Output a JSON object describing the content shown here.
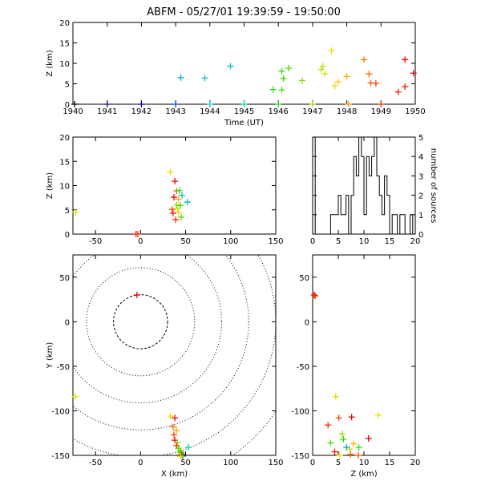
{
  "title": "ABFM - 05/27/01 19:39:59 - 19:50:00",
  "chart_data": [
    {
      "id": "time-height",
      "type": "scatter",
      "xlabel": "Time (UT)",
      "ylabel": "Z (km)",
      "xlim": [
        1940,
        1950
      ],
      "ylim": [
        0,
        20
      ],
      "xticks": [
        "1940",
        "1941",
        "1942",
        "1943",
        "1944",
        "1945",
        "1946",
        "1947",
        "1948",
        "1949",
        "1950"
      ],
      "yticks": [
        "0",
        "5",
        "10",
        "15",
        "20"
      ],
      "points": [
        {
          "x": 1940.05,
          "y": 0,
          "color": "#000000"
        },
        {
          "x": 1941.0,
          "y": 0,
          "color": "#3a007a"
        },
        {
          "x": 1942.0,
          "y": 0,
          "color": "#0000dd"
        },
        {
          "x": 1943.0,
          "y": 0,
          "color": "#0044dd"
        },
        {
          "x": 1943.15,
          "y": 6.5,
          "color": "#00aacc"
        },
        {
          "x": 1943.85,
          "y": 6.4,
          "color": "#00bbcc"
        },
        {
          "x": 1944.0,
          "y": 0,
          "color": "#00dddd"
        },
        {
          "x": 1944.6,
          "y": 9.3,
          "color": "#00ccbb"
        },
        {
          "x": 1945.0,
          "y": 0,
          "color": "#00ddaa"
        },
        {
          "x": 1945.85,
          "y": 3.6,
          "color": "#22dd22"
        },
        {
          "x": 1946.0,
          "y": 0,
          "color": "#22dd22"
        },
        {
          "x": 1946.1,
          "y": 8.1,
          "color": "#33dd00"
        },
        {
          "x": 1946.15,
          "y": 6.3,
          "color": "#33dd00"
        },
        {
          "x": 1946.1,
          "y": 3.5,
          "color": "#44dd00"
        },
        {
          "x": 1946.3,
          "y": 8.8,
          "color": "#55dd00"
        },
        {
          "x": 1946.7,
          "y": 5.8,
          "color": "#88dd00"
        },
        {
          "x": 1947.0,
          "y": 0,
          "color": "#aadd00"
        },
        {
          "x": 1947.25,
          "y": 8.5,
          "color": "#bbdd00"
        },
        {
          "x": 1947.3,
          "y": 9.3,
          "color": "#ccdd00"
        },
        {
          "x": 1947.35,
          "y": 7.4,
          "color": "#dddd00"
        },
        {
          "x": 1947.55,
          "y": 13.1,
          "color": "#eedd00"
        },
        {
          "x": 1947.65,
          "y": 4.5,
          "color": "#eedd00"
        },
        {
          "x": 1947.75,
          "y": 5.5,
          "color": "#ffcc00"
        },
        {
          "x": 1948.0,
          "y": 6.8,
          "color": "#ffaa00"
        },
        {
          "x": 1948.05,
          "y": 0,
          "color": "#ff9900"
        },
        {
          "x": 1948.5,
          "y": 10.9,
          "color": "#ff7700"
        },
        {
          "x": 1948.65,
          "y": 7.4,
          "color": "#ff6600"
        },
        {
          "x": 1948.7,
          "y": 5.2,
          "color": "#ff5500"
        },
        {
          "x": 1948.85,
          "y": 5.1,
          "color": "#ff4400"
        },
        {
          "x": 1949.0,
          "y": 0,
          "color": "#ff3300"
        },
        {
          "x": 1949.5,
          "y": 3.0,
          "color": "#ff2200"
        },
        {
          "x": 1949.7,
          "y": 4.3,
          "color": "#ff1100"
        },
        {
          "x": 1949.7,
          "y": 10.9,
          "color": "#ee0000"
        },
        {
          "x": 1949.95,
          "y": 7.6,
          "color": "#ee0000"
        }
      ]
    },
    {
      "id": "x-height",
      "type": "scatter",
      "xlabel": "",
      "ylabel": "Z (km)",
      "xlim": [
        -75,
        150
      ],
      "ylim": [
        0,
        20
      ],
      "xticks": [
        -50,
        0,
        50,
        100,
        150
      ],
      "yticks": [
        "0",
        "5",
        "10",
        "15",
        "20"
      ],
      "points": [
        {
          "x": -72,
          "y": 4.5,
          "color": "#eedd00"
        },
        {
          "x": -5,
          "y": 0,
          "color": "#ee0000"
        },
        {
          "x": -3,
          "y": 0,
          "color": "#ff3300"
        },
        {
          "x": 33,
          "y": 12.8,
          "color": "#eedd00"
        },
        {
          "x": 38,
          "y": 10.9,
          "color": "#ee0000"
        },
        {
          "x": 40,
          "y": 8.9,
          "color": "#ff6600"
        },
        {
          "x": 37,
          "y": 7.6,
          "color": "#ee0000"
        },
        {
          "x": 42,
          "y": 7.2,
          "color": "#ffaa00"
        },
        {
          "x": 40,
          "y": 6.0,
          "color": "#88dd00"
        },
        {
          "x": 43,
          "y": 9.0,
          "color": "#22dd22"
        },
        {
          "x": 35,
          "y": 5.1,
          "color": "#ff4400"
        },
        {
          "x": 41,
          "y": 5.3,
          "color": "#ccdd00"
        },
        {
          "x": 39,
          "y": 3.0,
          "color": "#ff2200"
        },
        {
          "x": 36,
          "y": 4.3,
          "color": "#ff1100"
        },
        {
          "x": 45,
          "y": 3.5,
          "color": "#44dd00"
        },
        {
          "x": 44,
          "y": 5.9,
          "color": "#33dd00"
        },
        {
          "x": 46,
          "y": 8.0,
          "color": "#00ccbb"
        },
        {
          "x": 52,
          "y": 6.6,
          "color": "#00aacc"
        },
        {
          "x": 42,
          "y": 4.5,
          "color": "#eedd00"
        }
      ]
    },
    {
      "id": "height-histogram",
      "type": "bar",
      "ylabel": "number of sources",
      "xlim": [
        0,
        20
      ],
      "ylim": [
        0,
        5
      ],
      "xticks": [
        0,
        5,
        10,
        15,
        20
      ],
      "yticks": [
        0,
        1,
        2,
        3,
        4,
        5
      ],
      "bin_width": 0.5,
      "counts": [
        5,
        0,
        0,
        0,
        0,
        0,
        0,
        1,
        1,
        1,
        2,
        1,
        1,
        2,
        0,
        2,
        4,
        3,
        5,
        4,
        1,
        4,
        3,
        4,
        5,
        3,
        2,
        1,
        3,
        2,
        0,
        1,
        1,
        0,
        1,
        1,
        0,
        0,
        1,
        0
      ]
    },
    {
      "id": "plan-view",
      "type": "scatter",
      "xlabel": "X (km)",
      "ylabel": "Y (km)",
      "xlim": [
        -75,
        150
      ],
      "ylim": [
        -150,
        75
      ],
      "xticks": [
        -50,
        0,
        50,
        100,
        150
      ],
      "yticks": [
        -150,
        -100,
        -50,
        0,
        50
      ],
      "range_rings_km": [
        30,
        60,
        90,
        120,
        150,
        180
      ],
      "points": [
        {
          "x": -4,
          "y": 30,
          "color": "#ee0000"
        },
        {
          "x": -72,
          "y": -84,
          "color": "#eedd00"
        },
        {
          "x": 33,
          "y": -106,
          "color": "#eedd00"
        },
        {
          "x": 38,
          "y": -108,
          "color": "#ee0000"
        },
        {
          "x": 36,
          "y": -118,
          "color": "#ff6600"
        },
        {
          "x": 40,
          "y": -122,
          "color": "#ffaa00"
        },
        {
          "x": 37,
          "y": -127,
          "color": "#ff4400"
        },
        {
          "x": 38,
          "y": -133,
          "color": "#ee0000"
        },
        {
          "x": 41,
          "y": -136,
          "color": "#88dd00"
        },
        {
          "x": 40,
          "y": -139,
          "color": "#ff2200"
        },
        {
          "x": 42,
          "y": -142,
          "color": "#22dd22"
        },
        {
          "x": 43,
          "y": -144,
          "color": "#ccdd00"
        },
        {
          "x": 44,
          "y": -146,
          "color": "#44dd00"
        },
        {
          "x": 45,
          "y": -147,
          "color": "#33dd00"
        },
        {
          "x": 46,
          "y": -149,
          "color": "#ff1100"
        },
        {
          "x": 53,
          "y": -141,
          "color": "#00ccbb"
        },
        {
          "x": 47,
          "y": -151,
          "color": "#00aacc"
        },
        {
          "x": 44,
          "y": -151,
          "color": "#eedd00"
        }
      ]
    },
    {
      "id": "height-y",
      "type": "scatter",
      "xlabel": "Z (km)",
      "ylabel": "",
      "xlim": [
        0,
        20
      ],
      "ylim": [
        -150,
        75
      ],
      "xticks": [
        0,
        5,
        10,
        15,
        20
      ],
      "yticks": [
        -150,
        -100,
        -50,
        0,
        50
      ],
      "points": [
        {
          "x": 0.3,
          "y": 30,
          "color": "#ee0000"
        },
        {
          "x": 0.5,
          "y": 29,
          "color": "#ff3300"
        },
        {
          "x": 4.5,
          "y": -84,
          "color": "#eedd00"
        },
        {
          "x": 3.0,
          "y": -116,
          "color": "#ff2200"
        },
        {
          "x": 5.1,
          "y": -108,
          "color": "#ff4400"
        },
        {
          "x": 7.6,
          "y": -107,
          "color": "#ee0000"
        },
        {
          "x": 12.8,
          "y": -105,
          "color": "#eedd00"
        },
        {
          "x": 10.9,
          "y": -131,
          "color": "#ee0000"
        },
        {
          "x": 3.5,
          "y": -136,
          "color": "#44dd00"
        },
        {
          "x": 5.8,
          "y": -126,
          "color": "#88dd00"
        },
        {
          "x": 6.0,
          "y": -132,
          "color": "#33dd00"
        },
        {
          "x": 8.0,
          "y": -137,
          "color": "#ffaa00"
        },
        {
          "x": 7.2,
          "y": -143,
          "color": "#ccdd00"
        },
        {
          "x": 6.6,
          "y": -141,
          "color": "#00aacc"
        },
        {
          "x": 9.0,
          "y": -141,
          "color": "#22dd22"
        },
        {
          "x": 4.3,
          "y": -146,
          "color": "#ff1100"
        },
        {
          "x": 7.4,
          "y": -149,
          "color": "#ff6600"
        },
        {
          "x": 8.9,
          "y": -150,
          "color": "#ff5500"
        },
        {
          "x": 5.3,
          "y": -150,
          "color": "#eedd00"
        }
      ]
    }
  ]
}
